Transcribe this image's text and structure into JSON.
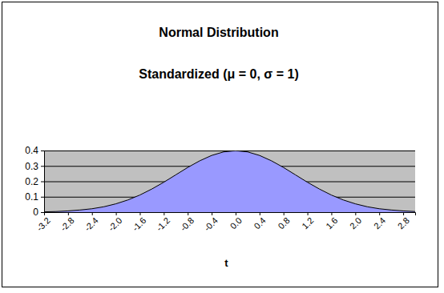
{
  "chart_data": {
    "type": "area",
    "title": "Normal Distribution",
    "subtitle": "Standardized (μ = 0, σ = 1)",
    "x_label": "t",
    "x": [
      -3.2,
      -3.0,
      -2.8,
      -2.6,
      -2.4,
      -2.2,
      -2.0,
      -1.8,
      -1.6,
      -1.4,
      -1.2,
      -1.0,
      -0.8,
      -0.6,
      -0.4,
      -0.2,
      0.0,
      0.2,
      0.4,
      0.6,
      0.8,
      1.0,
      1.2,
      1.4,
      1.6,
      1.8,
      2.0,
      2.2,
      2.4,
      2.6,
      2.8,
      3.0
    ],
    "values": [
      0.002,
      0.004,
      0.008,
      0.014,
      0.022,
      0.035,
      0.054,
      0.079,
      0.111,
      0.15,
      0.194,
      0.242,
      0.29,
      0.333,
      0.368,
      0.391,
      0.399,
      0.391,
      0.368,
      0.333,
      0.29,
      0.242,
      0.194,
      0.15,
      0.111,
      0.079,
      0.054,
      0.035,
      0.022,
      0.014,
      0.008,
      0.004
    ],
    "color": "#9999ff",
    "xlim": [
      -3.2,
      3.0
    ],
    "xticks": [
      -3.2,
      -2.8,
      -2.4,
      {
        "value": -2.0,
        "label": "-2.0"
      },
      -1.6,
      -1.2,
      -0.8,
      -0.4,
      {
        "value": 0.0,
        "label": "0.0"
      },
      0.4,
      0.8,
      1.2,
      1.6,
      {
        "value": 2.0,
        "label": "2.0"
      },
      2.4,
      2.8
    ],
    "ylim": [
      0,
      0.4
    ],
    "yticks": [
      0,
      0.1,
      0.2,
      0.3,
      0.4
    ],
    "grid": true
  }
}
